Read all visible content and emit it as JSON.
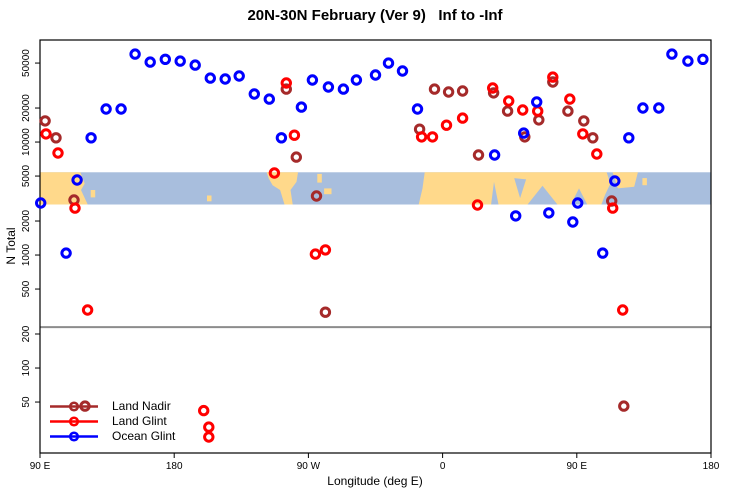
{
  "title": "20N-30N February (Ver 9)   Inf to -Inf",
  "xlabel": "Longitude (deg E)",
  "ylabel": "N Total",
  "colors": {
    "land_nadir": "#A52A2A",
    "land_glint": "#FF0000",
    "ocean_glint": "#0000FF",
    "map_land": "#FFD98B",
    "map_ocean": "#A8BEDD",
    "threshold_line": "#8C8C8C",
    "axis": "#000000"
  },
  "chart_data": {
    "type": "scatter",
    "title": "20N-30N February (Ver 9)   Inf to -Inf",
    "xlabel": "Longitude (deg E)",
    "ylabel": "N Total",
    "x_axis": {
      "range_deg": [
        90,
        540
      ],
      "ticks": [
        {
          "deg": 90,
          "label": "90 E"
        },
        {
          "deg": 180,
          "label": "180"
        },
        {
          "deg": 270,
          "label": "90 W"
        },
        {
          "deg": 360,
          "label": "0"
        },
        {
          "deg": 450,
          "label": "90 E"
        },
        {
          "deg": 540,
          "label": "180"
        }
      ]
    },
    "y_axis": {
      "scale": "log",
      "range": [
        17.7,
        80000
      ],
      "ticks": [
        50,
        100,
        200,
        500,
        1000,
        2000,
        5000,
        10000,
        20000,
        50000
      ]
    },
    "threshold_line_y": 230,
    "map_band": {
      "y_top": 5400,
      "y_bottom": 2800
    },
    "map_land_polygons": [
      [
        [
          90,
          0
        ],
        [
          117,
          0
        ],
        [
          120,
          0.35
        ],
        [
          117.5,
          0.55
        ],
        [
          122,
          1
        ],
        [
          90,
          1
        ]
      ],
      [
        [
          124,
          0.55
        ],
        [
          127,
          0.55
        ],
        [
          127,
          0.78
        ],
        [
          124,
          0.78
        ]
      ],
      [
        [
          202,
          0.72
        ],
        [
          205,
          0.72
        ],
        [
          205,
          0.9
        ],
        [
          202,
          0.9
        ]
      ],
      [
        [
          242,
          0
        ],
        [
          263,
          0
        ],
        [
          262,
          0.3
        ],
        [
          258,
          0.55
        ],
        [
          259.5,
          1
        ],
        [
          254,
          1
        ],
        [
          251,
          0.55
        ],
        [
          246,
          0.4
        ],
        [
          243.5,
          0.2
        ]
      ],
      [
        [
          276,
          0.05
        ],
        [
          279,
          0.05
        ],
        [
          279,
          0.32
        ],
        [
          276,
          0.32
        ]
      ],
      [
        [
          280.5,
          0.5
        ],
        [
          285.5,
          0.5
        ],
        [
          285.5,
          0.68
        ],
        [
          280.5,
          0.68
        ]
      ],
      [
        [
          348,
          0
        ],
        [
          470,
          0
        ],
        [
          472.5,
          0.35
        ],
        [
          469,
          0.7
        ],
        [
          466.5,
          1
        ],
        [
          344,
          1
        ],
        [
          346.5,
          0.5
        ]
      ],
      [
        [
          474,
          0
        ],
        [
          491,
          0
        ],
        [
          488.5,
          0.45
        ],
        [
          477.5,
          0.5
        ]
      ],
      [
        [
          494,
          0.18
        ],
        [
          497,
          0.18
        ],
        [
          497,
          0.4
        ],
        [
          494,
          0.4
        ]
      ]
    ],
    "map_water_notches": [
      [
        [
          392.5,
          1
        ],
        [
          394.5,
          0.3
        ],
        [
          397.5,
          1
        ]
      ],
      [
        [
          408,
          0.18
        ],
        [
          416,
          0.22
        ],
        [
          412,
          0.8
        ]
      ],
      [
        [
          417,
          1
        ],
        [
          427,
          0.42
        ],
        [
          437,
          1
        ]
      ],
      [
        [
          446,
          1
        ],
        [
          451.5,
          0.5
        ],
        [
          457,
          1
        ]
      ]
    ],
    "series": [
      {
        "name": "Land Nadir",
        "color": "#A52A2A",
        "points": [
          [
            93.4,
            15400
          ],
          [
            100.7,
            10900
          ],
          [
            112.8,
            3070
          ],
          [
            120.2,
            46
          ],
          [
            255.2,
            29400
          ],
          [
            261.9,
            7360
          ],
          [
            275.4,
            3330
          ],
          [
            281.4,
            312
          ],
          [
            344.6,
            13000
          ],
          [
            354.6,
            29400
          ],
          [
            364.0,
            27700
          ],
          [
            373.4,
            28300
          ],
          [
            384.1,
            7680
          ],
          [
            394.2,
            27200
          ],
          [
            403.6,
            18800
          ],
          [
            415.1,
            11100
          ],
          [
            424.5,
            15700
          ],
          [
            433.9,
            34000
          ],
          [
            444.0,
            18800
          ],
          [
            454.7,
            15400
          ],
          [
            460.7,
            10900
          ],
          [
            473.4,
            3010
          ],
          [
            481.5,
            46
          ]
        ]
      },
      {
        "name": "Land Glint",
        "color": "#FF0000",
        "points": [
          [
            94.0,
            11800
          ],
          [
            102.1,
            8000
          ],
          [
            113.5,
            2600
          ],
          [
            121.9,
            326
          ],
          [
            199.8,
            42
          ],
          [
            203.2,
            30
          ],
          [
            203.2,
            24.5
          ],
          [
            247.2,
            5320
          ],
          [
            255.2,
            33300
          ],
          [
            260.6,
            11500
          ],
          [
            274.7,
            1020
          ],
          [
            281.4,
            1110
          ],
          [
            345.9,
            11100
          ],
          [
            353.2,
            11100
          ],
          [
            362.6,
            14100
          ],
          [
            373.4,
            16300
          ],
          [
            383.4,
            2770
          ],
          [
            393.6,
            30100
          ],
          [
            404.3,
            23100
          ],
          [
            413.7,
            19200
          ],
          [
            423.8,
            18800
          ],
          [
            433.9,
            37600
          ],
          [
            445.3,
            24000
          ],
          [
            454.0,
            11800
          ],
          [
            463.4,
            7840
          ],
          [
            474.1,
            2600
          ],
          [
            480.8,
            326
          ]
        ]
      },
      {
        "name": "Ocean Glint",
        "color": "#0000FF",
        "points": [
          [
            90.5,
            2890
          ],
          [
            107.5,
            1040
          ],
          [
            114.9,
            4610
          ],
          [
            124.3,
            10900
          ],
          [
            134.3,
            19600
          ],
          [
            144.4,
            19600
          ],
          [
            153.8,
            60000
          ],
          [
            163.9,
            51000
          ],
          [
            174.0,
            54000
          ],
          [
            184.0,
            52000
          ],
          [
            194.1,
            48000
          ],
          [
            204.2,
            36800
          ],
          [
            214.2,
            36100
          ],
          [
            223.6,
            38400
          ],
          [
            233.7,
            26600
          ],
          [
            243.8,
            24000
          ],
          [
            251.9,
            10900
          ],
          [
            265.3,
            20400
          ],
          [
            272.7,
            35400
          ],
          [
            283.4,
            30700
          ],
          [
            293.5,
            29400
          ],
          [
            302.2,
            35400
          ],
          [
            315.0,
            39200
          ],
          [
            323.7,
            50000
          ],
          [
            333.1,
            42500
          ],
          [
            343.2,
            19600
          ],
          [
            394.9,
            7680
          ],
          [
            409.0,
            2220
          ],
          [
            414.4,
            12000
          ],
          [
            423.1,
            22600
          ],
          [
            431.2,
            2360
          ],
          [
            447.3,
            1960
          ],
          [
            450.6,
            2890
          ],
          [
            467.4,
            1040
          ],
          [
            475.5,
            4520
          ],
          [
            484.9,
            10900
          ],
          [
            494.3,
            20000
          ],
          [
            505.0,
            20000
          ],
          [
            513.8,
            60000
          ],
          [
            524.5,
            52000
          ],
          [
            534.6,
            54000
          ]
        ]
      }
    ]
  }
}
